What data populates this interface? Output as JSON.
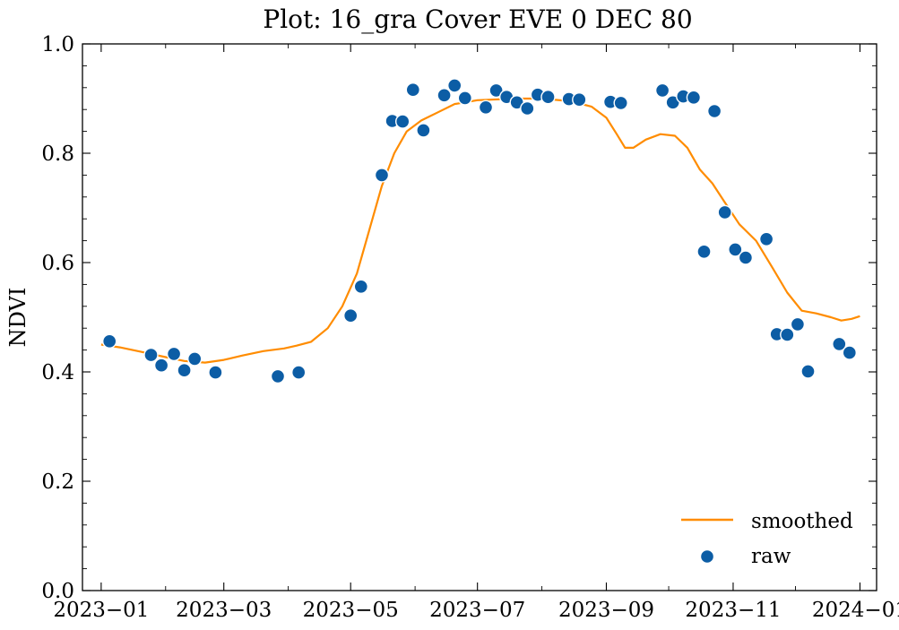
{
  "chart_data": {
    "type": "line",
    "title": "Plot: 16_gra Cover EVE 0 DEC 80",
    "xlabel": "",
    "ylabel": "NDVI",
    "xlim": [
      "2022-12-23",
      "2024-01-09"
    ],
    "ylim": [
      0.0,
      1.0
    ],
    "x_ticks": [
      "2023-01-01",
      "2023-03-01",
      "2023-05-01",
      "2023-07-01",
      "2023-09-01",
      "2023-11-01",
      "2024-01-01"
    ],
    "x_tick_labels": [
      "2023−01",
      "2023−03",
      "2023−05",
      "2023−07",
      "2023−09",
      "2023−11",
      "2024−01"
    ],
    "y_ticks": [
      0.0,
      0.2,
      0.4,
      0.6,
      0.8,
      1.0
    ],
    "y_tick_labels": [
      "0.0",
      "0.2",
      "0.4",
      "0.6",
      "0.8",
      "1.0"
    ],
    "grid": false,
    "legend_position": "bottom-right",
    "series": [
      {
        "name": "smoothed",
        "kind": "line",
        "color": "#ff8c00",
        "points": [
          [
            "2023-01-01",
            0.45
          ],
          [
            "2023-01-10",
            0.445
          ],
          [
            "2023-01-20",
            0.437
          ],
          [
            "2023-02-01",
            0.427
          ],
          [
            "2023-02-10",
            0.42
          ],
          [
            "2023-02-20",
            0.417
          ],
          [
            "2023-03-01",
            0.422
          ],
          [
            "2023-03-10",
            0.43
          ],
          [
            "2023-03-20",
            0.438
          ],
          [
            "2023-03-30",
            0.443
          ],
          [
            "2023-04-05",
            0.448
          ],
          [
            "2023-04-12",
            0.455
          ],
          [
            "2023-04-20",
            0.48
          ],
          [
            "2023-04-27",
            0.52
          ],
          [
            "2023-05-04",
            0.58
          ],
          [
            "2023-05-10",
            0.66
          ],
          [
            "2023-05-16",
            0.74
          ],
          [
            "2023-05-22",
            0.8
          ],
          [
            "2023-05-28",
            0.84
          ],
          [
            "2023-06-04",
            0.86
          ],
          [
            "2023-06-12",
            0.875
          ],
          [
            "2023-06-20",
            0.89
          ],
          [
            "2023-07-01",
            0.897
          ],
          [
            "2023-07-20",
            0.9
          ],
          [
            "2023-08-01",
            0.9
          ],
          [
            "2023-08-15",
            0.895
          ],
          [
            "2023-08-25",
            0.885
          ],
          [
            "2023-09-01",
            0.865
          ],
          [
            "2023-09-06",
            0.835
          ],
          [
            "2023-09-10",
            0.81
          ],
          [
            "2023-09-14",
            0.81
          ],
          [
            "2023-09-20",
            0.825
          ],
          [
            "2023-09-27",
            0.835
          ],
          [
            "2023-10-04",
            0.832
          ],
          [
            "2023-10-10",
            0.81
          ],
          [
            "2023-10-16",
            0.77
          ],
          [
            "2023-10-22",
            0.745
          ],
          [
            "2023-10-28",
            0.71
          ],
          [
            "2023-11-04",
            0.67
          ],
          [
            "2023-11-12",
            0.64
          ],
          [
            "2023-11-20",
            0.59
          ],
          [
            "2023-11-27",
            0.545
          ],
          [
            "2023-12-04",
            0.512
          ],
          [
            "2023-12-11",
            0.507
          ],
          [
            "2023-12-18",
            0.5
          ],
          [
            "2023-12-23",
            0.494
          ],
          [
            "2023-12-28",
            0.497
          ],
          [
            "2024-01-01",
            0.502
          ]
        ]
      },
      {
        "name": "raw",
        "kind": "scatter",
        "color": "#0c5da5",
        "points": [
          [
            "2023-01-05",
            0.456
          ],
          [
            "2023-01-25",
            0.431
          ],
          [
            "2023-01-30",
            0.412
          ],
          [
            "2023-02-05",
            0.433
          ],
          [
            "2023-02-10",
            0.403
          ],
          [
            "2023-02-15",
            0.424
          ],
          [
            "2023-02-25",
            0.399
          ],
          [
            "2023-03-27",
            0.392
          ],
          [
            "2023-04-06",
            0.399
          ],
          [
            "2023-05-01",
            0.503
          ],
          [
            "2023-05-06",
            0.556
          ],
          [
            "2023-05-16",
            0.76
          ],
          [
            "2023-05-21",
            0.859
          ],
          [
            "2023-05-26",
            0.858
          ],
          [
            "2023-05-31",
            0.916
          ],
          [
            "2023-06-05",
            0.842
          ],
          [
            "2023-06-15",
            0.906
          ],
          [
            "2023-06-20",
            0.924
          ],
          [
            "2023-06-25",
            0.901
          ],
          [
            "2023-07-05",
            0.884
          ],
          [
            "2023-07-10",
            0.915
          ],
          [
            "2023-07-15",
            0.903
          ],
          [
            "2023-07-20",
            0.893
          ],
          [
            "2023-07-25",
            0.882
          ],
          [
            "2023-07-30",
            0.907
          ],
          [
            "2023-08-04",
            0.903
          ],
          [
            "2023-08-14",
            0.899
          ],
          [
            "2023-08-19",
            0.898
          ],
          [
            "2023-09-03",
            0.894
          ],
          [
            "2023-09-08",
            0.892
          ],
          [
            "2023-09-28",
            0.915
          ],
          [
            "2023-10-03",
            0.893
          ],
          [
            "2023-10-08",
            0.904
          ],
          [
            "2023-10-13",
            0.902
          ],
          [
            "2023-10-18",
            0.62
          ],
          [
            "2023-10-23",
            0.877
          ],
          [
            "2023-10-28",
            0.692
          ],
          [
            "2023-11-02",
            0.624
          ],
          [
            "2023-11-07",
            0.609
          ],
          [
            "2023-11-17",
            0.643
          ],
          [
            "2023-11-22",
            0.469
          ],
          [
            "2023-11-27",
            0.468
          ],
          [
            "2023-12-02",
            0.487
          ],
          [
            "2023-12-07",
            0.401
          ],
          [
            "2023-12-22",
            0.451
          ],
          [
            "2023-12-27",
            0.435
          ]
        ]
      }
    ]
  }
}
